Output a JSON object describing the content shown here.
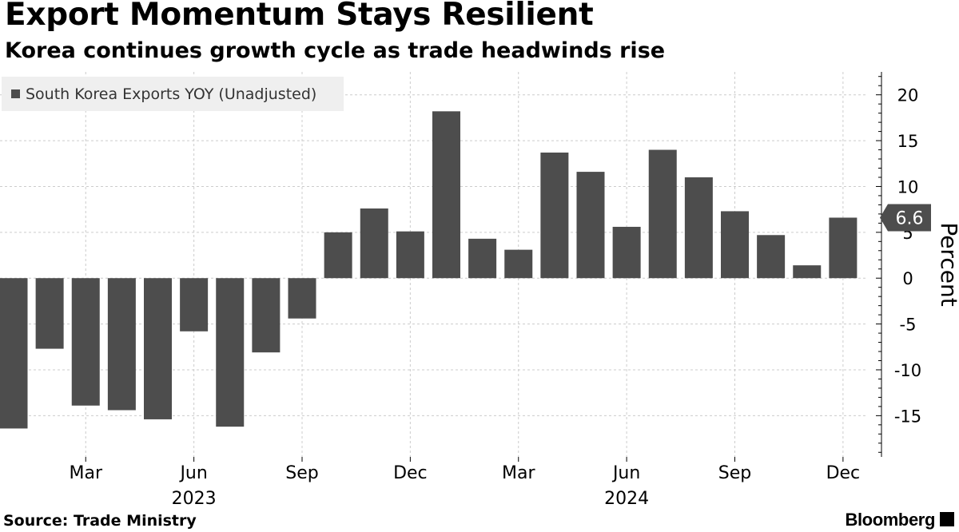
{
  "title": "Export Momentum Stays Resilient",
  "subtitle": "Korea continues growth cycle as trade headwinds rise",
  "source": "Source: Trade Ministry",
  "brand": "Bloomberg",
  "brand_icon": "bloomberg-terminal-icon",
  "colors": {
    "bar": "#4d4d4d",
    "legend_bg": "#efefef",
    "grid": "#cccccc"
  },
  "chart_data": {
    "type": "bar",
    "categories": [
      "Jan 2023",
      "Feb 2023",
      "Mar 2023",
      "Apr 2023",
      "May 2023",
      "Jun 2023",
      "Jul 2023",
      "Aug 2023",
      "Sep 2023",
      "Oct 2023",
      "Nov 2023",
      "Dec 2023",
      "Jan 2024",
      "Feb 2024",
      "Mar 2024",
      "Apr 2024",
      "May 2024",
      "Jun 2024",
      "Jul 2024",
      "Aug 2024",
      "Sep 2024",
      "Oct 2024",
      "Nov 2024",
      "Dec 2024"
    ],
    "series": [
      {
        "name": "South Korea Exports YOY (Unadjusted)",
        "values": [
          -16.4,
          -7.7,
          -13.9,
          -14.4,
          -15.4,
          -5.8,
          -16.2,
          -8.1,
          -4.4,
          5.0,
          7.6,
          5.1,
          18.2,
          4.3,
          3.1,
          13.7,
          11.6,
          5.6,
          14.0,
          11.0,
          7.3,
          4.7,
          1.4,
          6.6
        ]
      }
    ],
    "ylabel": "Percent",
    "ylim": [
      -19.5,
      22.5
    ],
    "yticks": [
      20,
      15,
      10,
      5,
      0,
      -5,
      -10,
      -15
    ],
    "x_tick_labels": [
      {
        "label": "Mar",
        "index": 2
      },
      {
        "label": "Jun",
        "index": 5
      },
      {
        "label": "Sep",
        "index": 8
      },
      {
        "label": "Dec",
        "index": 11
      },
      {
        "label": "Mar",
        "index": 14
      },
      {
        "label": "Jun",
        "index": 17
      },
      {
        "label": "Sep",
        "index": 20
      },
      {
        "label": "Dec",
        "index": 23
      }
    ],
    "year_labels": [
      {
        "label": "2023",
        "index": 5
      },
      {
        "label": "2024",
        "index": 17
      }
    ],
    "last_value_label": "6.6",
    "grid": true,
    "legend_position": "top-left"
  }
}
